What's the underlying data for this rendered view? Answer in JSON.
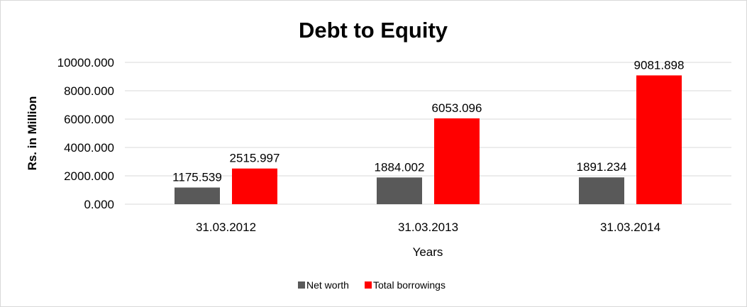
{
  "chart_data": {
    "type": "bar",
    "title": "Debt to Equity",
    "xlabel": "Years",
    "ylabel": "Rs. in Million",
    "categories": [
      "31.03.2012",
      "31.03.2013",
      "31.03.2014"
    ],
    "series": [
      {
        "name": "Net worth",
        "color": "#595959",
        "values": [
          1175.539,
          1884.002,
          1891.234
        ],
        "labels": [
          "1175.539",
          "1884.002",
          "1891.234"
        ]
      },
      {
        "name": "Total borrowings",
        "color": "#ff0000",
        "values": [
          2515.997,
          6053.096,
          9081.898
        ],
        "labels": [
          "2515.997",
          "6053.096",
          "9081.898"
        ]
      }
    ],
    "ylim": [
      0,
      10000
    ],
    "yticks": [
      0,
      2000,
      4000,
      6000,
      8000,
      10000
    ],
    "ytick_labels": [
      "0.000",
      "2000.000",
      "4000.000",
      "6000.000",
      "8000.000",
      "10000.000"
    ],
    "grid": true,
    "legend": "bottom-center"
  }
}
